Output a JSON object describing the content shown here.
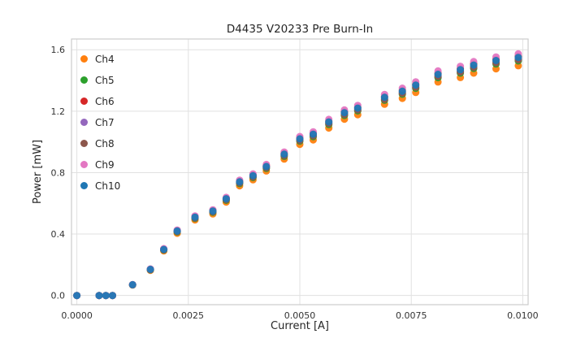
{
  "chart_data": {
    "type": "scatter",
    "title": "D4435 V20233 Pre Burn-In",
    "xlabel": "Current [A]",
    "ylabel": "Power [mW]",
    "xlim": [
      -0.00012,
      0.01012
    ],
    "ylim": [
      -0.06,
      1.67
    ],
    "x_ticks": [
      0.0,
      0.0025,
      0.005,
      0.0075,
      0.01
    ],
    "x_tick_labels": [
      "0.0000",
      "0.0025",
      "0.0050",
      "0.0075",
      "0.0100"
    ],
    "y_ticks": [
      0.0,
      0.4,
      0.8,
      1.2,
      1.6
    ],
    "y_tick_labels": [
      "0.0",
      "0.4",
      "0.8",
      "1.2",
      "1.6"
    ],
    "grid": true,
    "grid_color": "#e1e1e1",
    "border_color": "#cccccc",
    "legend_position": "upper left",
    "marker_radius": 4.5,
    "x": [
      0.0,
      0.0005,
      0.00065,
      0.0008,
      0.00125,
      0.00165,
      0.00195,
      0.00225,
      0.00265,
      0.00305,
      0.00335,
      0.00365,
      0.00395,
      0.00425,
      0.00465,
      0.005,
      0.0053,
      0.00565,
      0.006,
      0.0063,
      0.0069,
      0.0073,
      0.0076,
      0.0081,
      0.0086,
      0.0089,
      0.0094,
      0.0099
    ],
    "series": [
      {
        "name": "Ch4",
        "color": "#ff7f0e",
        "y": [
          0,
          0,
          0,
          0,
          0.068,
          0.164,
          0.29,
          0.405,
          0.492,
          0.531,
          0.608,
          0.714,
          0.753,
          0.811,
          0.888,
          0.984,
          1.013,
          1.09,
          1.148,
          1.177,
          1.245,
          1.283,
          1.322,
          1.39,
          1.419,
          1.448,
          1.476,
          1.496
        ]
      },
      {
        "name": "Ch5",
        "color": "#2ca02c",
        "y": [
          0,
          0,
          0,
          0,
          0.069,
          0.167,
          0.296,
          0.414,
          0.502,
          0.542,
          0.62,
          0.729,
          0.768,
          0.827,
          0.906,
          1.005,
          1.034,
          1.113,
          1.172,
          1.202,
          1.271,
          1.31,
          1.349,
          1.418,
          1.448,
          1.478,
          1.507,
          1.527
        ]
      },
      {
        "name": "Ch6",
        "color": "#d62728",
        "y": [
          0,
          0,
          0,
          0,
          0.07,
          0.171,
          0.302,
          0.422,
          0.513,
          0.553,
          0.633,
          0.744,
          0.784,
          0.844,
          0.925,
          1.025,
          1.055,
          1.136,
          1.196,
          1.226,
          1.296,
          1.337,
          1.377,
          1.447,
          1.477,
          1.508,
          1.538,
          1.558
        ]
      },
      {
        "name": "Ch7",
        "color": "#9467bd",
        "y": [
          0,
          0,
          0,
          0,
          0.07,
          0.169,
          0.299,
          0.418,
          0.507,
          0.547,
          0.627,
          0.736,
          0.776,
          0.836,
          0.915,
          1.015,
          1.045,
          1.124,
          1.184,
          1.214,
          1.284,
          1.323,
          1.363,
          1.433,
          1.463,
          1.493,
          1.522,
          1.542
        ]
      },
      {
        "name": "Ch8",
        "color": "#8c564b",
        "y": [
          0,
          0,
          0,
          0,
          0.069,
          0.168,
          0.297,
          0.416,
          0.505,
          0.545,
          0.624,
          0.733,
          0.772,
          0.832,
          0.911,
          1.01,
          1.04,
          1.119,
          1.178,
          1.208,
          1.277,
          1.317,
          1.356,
          1.426,
          1.455,
          1.485,
          1.515,
          1.535
        ]
      },
      {
        "name": "Ch9",
        "color": "#e377c2",
        "y": [
          0,
          0,
          0,
          0,
          0.071,
          0.173,
          0.305,
          0.426,
          0.518,
          0.558,
          0.639,
          0.751,
          0.792,
          0.853,
          0.934,
          1.035,
          1.066,
          1.147,
          1.208,
          1.238,
          1.309,
          1.35,
          1.391,
          1.462,
          1.492,
          1.523,
          1.553,
          1.573
        ]
      },
      {
        "name": "Ch10",
        "color": "#1f77b4",
        "y": [
          0,
          0,
          0,
          0,
          0.07,
          0.17,
          0.3,
          0.42,
          0.51,
          0.55,
          0.63,
          0.74,
          0.78,
          0.84,
          0.92,
          1.02,
          1.05,
          1.13,
          1.19,
          1.22,
          1.29,
          1.33,
          1.37,
          1.44,
          1.47,
          1.5,
          1.53,
          1.55
        ]
      }
    ]
  }
}
